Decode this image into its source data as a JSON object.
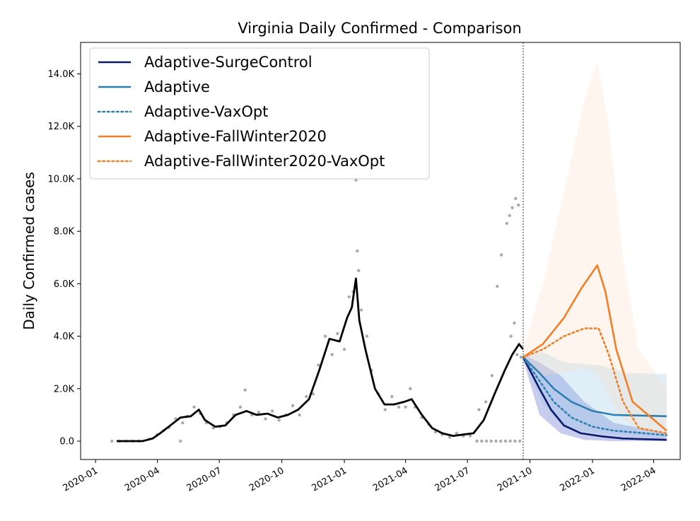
{
  "chart_data": {
    "type": "line",
    "title": "Virginia Daily Confirmed - Comparison",
    "xlabel": "",
    "ylabel": "Daily Confirmed cases",
    "x_ticks": [
      "2020-01",
      "2020-04",
      "2020-07",
      "2020-10",
      "2021-01",
      "2021-04",
      "2021-07",
      "2021-10",
      "2022-01",
      "2022-04"
    ],
    "y_ticks": [
      "0.0",
      "2.0K",
      "4.0K",
      "6.0K",
      "8.0K",
      "10.0K",
      "12.0K",
      "14.0K"
    ],
    "y_tick_values": [
      0,
      2000,
      4000,
      6000,
      8000,
      10000,
      12000,
      14000
    ],
    "xlim": [
      "2019-12-10",
      "2022-05-10"
    ],
    "ylim": [
      -700,
      15200
    ],
    "grid": false,
    "legend_position": "top-left",
    "vline_date": "2021-09-21",
    "observed": {
      "color": "#000000",
      "points": [
        [
          "2020-02-01",
          0
        ],
        [
          "2020-03-10",
          0
        ],
        [
          "2020-03-25",
          100
        ],
        [
          "2020-04-05",
          300
        ],
        [
          "2020-04-20",
          600
        ],
        [
          "2020-05-05",
          900
        ],
        [
          "2020-05-20",
          950
        ],
        [
          "2020-06-01",
          1200
        ],
        [
          "2020-06-10",
          800
        ],
        [
          "2020-06-25",
          550
        ],
        [
          "2020-07-10",
          600
        ],
        [
          "2020-07-25",
          1000
        ],
        [
          "2020-08-10",
          1150
        ],
        [
          "2020-08-25",
          1000
        ],
        [
          "2020-09-10",
          1050
        ],
        [
          "2020-09-25",
          900
        ],
        [
          "2020-10-10",
          1000
        ],
        [
          "2020-10-25",
          1200
        ],
        [
          "2020-11-10",
          1600
        ],
        [
          "2020-11-25",
          2700
        ],
        [
          "2020-12-10",
          3900
        ],
        [
          "2020-12-25",
          3800
        ],
        [
          "2021-01-05",
          4700
        ],
        [
          "2021-01-12",
          5100
        ],
        [
          "2021-01-18",
          6200
        ],
        [
          "2021-01-23",
          4600
        ],
        [
          "2021-02-01",
          3500
        ],
        [
          "2021-02-15",
          2000
        ],
        [
          "2021-03-01",
          1400
        ],
        [
          "2021-03-15",
          1400
        ],
        [
          "2021-03-30",
          1500
        ],
        [
          "2021-04-10",
          1600
        ],
        [
          "2021-04-25",
          1000
        ],
        [
          "2021-05-10",
          500
        ],
        [
          "2021-05-25",
          300
        ],
        [
          "2021-06-10",
          200
        ],
        [
          "2021-06-25",
          250
        ],
        [
          "2021-07-10",
          300
        ],
        [
          "2021-07-25",
          800
        ],
        [
          "2021-08-10",
          1800
        ],
        [
          "2021-08-25",
          2700
        ],
        [
          "2021-09-05",
          3300
        ],
        [
          "2021-09-15",
          3700
        ],
        [
          "2021-09-21",
          3500
        ]
      ]
    },
    "scatter": {
      "color": "#aaaaaa",
      "points": [
        [
          "2020-01-25",
          0
        ],
        [
          "2020-02-05",
          0
        ],
        [
          "2020-02-15",
          0
        ],
        [
          "2020-02-25",
          0
        ],
        [
          "2020-03-05",
          0
        ],
        [
          "2020-03-20",
          80
        ],
        [
          "2020-04-01",
          250
        ],
        [
          "2020-04-10",
          400
        ],
        [
          "2020-04-18",
          520
        ],
        [
          "2020-04-28",
          850
        ],
        [
          "2020-05-08",
          700
        ],
        [
          "2020-05-05",
          0
        ],
        [
          "2020-05-15",
          950
        ],
        [
          "2020-05-25",
          1300
        ],
        [
          "2020-06-03",
          1050
        ],
        [
          "2020-06-12",
          700
        ],
        [
          "2020-06-22",
          500
        ],
        [
          "2020-07-02",
          550
        ],
        [
          "2020-07-12",
          700
        ],
        [
          "2020-07-22",
          1000
        ],
        [
          "2020-08-01",
          1300
        ],
        [
          "2020-08-08",
          1950
        ],
        [
          "2020-08-18",
          1000
        ],
        [
          "2020-08-28",
          1100
        ],
        [
          "2020-09-07",
          850
        ],
        [
          "2020-09-17",
          1150
        ],
        [
          "2020-09-27",
          800
        ],
        [
          "2020-10-07",
          1000
        ],
        [
          "2020-10-17",
          1350
        ],
        [
          "2020-10-27",
          1000
        ],
        [
          "2020-11-06",
          1700
        ],
        [
          "2020-11-16",
          1800
        ],
        [
          "2020-11-24",
          2900
        ],
        [
          "2020-12-04",
          4000
        ],
        [
          "2020-12-14",
          3300
        ],
        [
          "2020-12-22",
          4100
        ],
        [
          "2021-01-01",
          3500
        ],
        [
          "2021-01-08",
          5500
        ],
        [
          "2021-01-14",
          5700
        ],
        [
          "2021-01-18",
          9950
        ],
        [
          "2021-01-20",
          7250
        ],
        [
          "2021-01-22",
          6500
        ],
        [
          "2021-01-26",
          5000
        ],
        [
          "2021-02-03",
          4000
        ],
        [
          "2021-02-10",
          2700
        ],
        [
          "2021-02-20",
          1800
        ],
        [
          "2021-03-02",
          1200
        ],
        [
          "2021-03-12",
          1700
        ],
        [
          "2021-03-22",
          1300
        ],
        [
          "2021-04-01",
          1300
        ],
        [
          "2021-04-08",
          2000
        ],
        [
          "2021-04-15",
          1300
        ],
        [
          "2021-04-25",
          900
        ],
        [
          "2021-05-05",
          650
        ],
        [
          "2021-05-15",
          350
        ],
        [
          "2021-05-25",
          250
        ],
        [
          "2021-06-05",
          150
        ],
        [
          "2021-06-15",
          300
        ],
        [
          "2021-06-25",
          200
        ],
        [
          "2021-07-05",
          200
        ],
        [
          "2021-07-15",
          0
        ],
        [
          "2021-07-22",
          0
        ],
        [
          "2021-07-29",
          0
        ],
        [
          "2021-08-05",
          0
        ],
        [
          "2021-08-12",
          0
        ],
        [
          "2021-08-19",
          0
        ],
        [
          "2021-08-26",
          0
        ],
        [
          "2021-09-02",
          0
        ],
        [
          "2021-09-09",
          0
        ],
        [
          "2021-09-16",
          0
        ],
        [
          "2021-07-18",
          1200
        ],
        [
          "2021-07-28",
          1500
        ],
        [
          "2021-08-06",
          2500
        ],
        [
          "2021-08-14",
          5900
        ],
        [
          "2021-08-20",
          7100
        ],
        [
          "2021-08-28",
          8300
        ],
        [
          "2021-09-01",
          8600
        ],
        [
          "2021-09-05",
          8900
        ],
        [
          "2021-09-10",
          9250
        ],
        [
          "2021-09-14",
          9000
        ],
        [
          "2021-09-03",
          4000
        ],
        [
          "2021-09-08",
          4500
        ],
        [
          "2021-09-12",
          3300
        ],
        [
          "2021-09-18",
          3200
        ]
      ]
    },
    "series": [
      {
        "name": "Adaptive-SurgeControl",
        "color": "#0b1a6b",
        "style": "solid",
        "points": [
          [
            "2021-09-21",
            3200
          ],
          [
            "2021-10-15",
            2000
          ],
          [
            "2021-11-01",
            1200
          ],
          [
            "2021-11-20",
            600
          ],
          [
            "2021-12-15",
            300
          ],
          [
            "2022-01-15",
            180
          ],
          [
            "2022-02-15",
            100
          ],
          [
            "2022-04-20",
            50
          ]
        ],
        "band": {
          "color": "#3a4bc9",
          "upper": [
            [
              "2021-09-21",
              3300
            ],
            [
              "2021-10-15",
              3000
            ],
            [
              "2021-11-15",
              2500
            ],
            [
              "2021-12-20",
              1500
            ],
            [
              "2022-02-01",
              700
            ],
            [
              "2022-04-20",
              300
            ]
          ],
          "lower": [
            [
              "2021-09-21",
              3100
            ],
            [
              "2021-10-15",
              1000
            ],
            [
              "2021-11-15",
              300
            ],
            [
              "2021-12-20",
              50
            ],
            [
              "2022-02-01",
              0
            ],
            [
              "2022-04-20",
              0
            ]
          ]
        }
      },
      {
        "name": "Adaptive",
        "color": "#2e7fb0",
        "style": "solid",
        "points": [
          [
            "2021-09-21",
            3200
          ],
          [
            "2021-10-15",
            2600
          ],
          [
            "2021-11-05",
            2000
          ],
          [
            "2021-12-01",
            1500
          ],
          [
            "2022-01-01",
            1150
          ],
          [
            "2022-02-01",
            1000
          ],
          [
            "2022-04-20",
            950
          ]
        ],
        "band": {
          "color": "#8fc1e3",
          "upper": [
            [
              "2021-09-21",
              3300
            ],
            [
              "2021-10-20",
              3400
            ],
            [
              "2021-11-20",
              3000
            ],
            [
              "2022-01-10",
              2900
            ],
            [
              "2022-02-20",
              2600
            ],
            [
              "2022-04-20",
              2550
            ]
          ],
          "lower": [
            [
              "2021-09-21",
              3100
            ],
            [
              "2021-10-20",
              1400
            ],
            [
              "2021-11-20",
              500
            ],
            [
              "2022-01-10",
              300
            ],
            [
              "2022-02-20",
              200
            ],
            [
              "2022-04-20",
              150
            ]
          ]
        }
      },
      {
        "name": "Adaptive-VaxOpt",
        "color": "#2e7fb0",
        "style": "dotted",
        "points": [
          [
            "2021-09-21",
            3200
          ],
          [
            "2021-10-15",
            2300
          ],
          [
            "2021-11-05",
            1500
          ],
          [
            "2021-12-01",
            900
          ],
          [
            "2022-01-01",
            550
          ],
          [
            "2022-02-01",
            400
          ],
          [
            "2022-04-20",
            230
          ]
        ]
      },
      {
        "name": "Adaptive-FallWinter2020",
        "color": "#f07f27",
        "style": "solid",
        "points": [
          [
            "2021-09-21",
            3200
          ],
          [
            "2021-10-20",
            3700
          ],
          [
            "2021-11-20",
            4700
          ],
          [
            "2021-12-15",
            5800
          ],
          [
            "2022-01-08",
            6700
          ],
          [
            "2022-01-20",
            5700
          ],
          [
            "2022-02-05",
            3500
          ],
          [
            "2022-03-01",
            1500
          ],
          [
            "2022-04-20",
            400
          ]
        ],
        "band": {
          "color": "#fddac2",
          "upper": [
            [
              "2021-09-21",
              3500
            ],
            [
              "2021-10-20",
              6000
            ],
            [
              "2021-11-20",
              9500
            ],
            [
              "2021-12-20",
              13000
            ],
            [
              "2022-01-08",
              14500
            ],
            [
              "2022-01-25",
              12000
            ],
            [
              "2022-02-15",
              7000
            ],
            [
              "2022-03-10",
              3500
            ],
            [
              "2022-04-20",
              2000
            ]
          ],
          "lower": [
            [
              "2021-09-21",
              3100
            ],
            [
              "2021-10-20",
              2500
            ],
            [
              "2021-11-20",
              2600
            ],
            [
              "2021-12-20",
              2800
            ],
            [
              "2022-01-10",
              2500
            ],
            [
              "2022-02-10",
              1000
            ],
            [
              "2022-03-10",
              400
            ],
            [
              "2022-04-20",
              200
            ]
          ]
        }
      },
      {
        "name": "Adaptive-FallWinter2020-VaxOpt",
        "color": "#f07f27",
        "style": "dotted",
        "points": [
          [
            "2021-09-21",
            3200
          ],
          [
            "2021-10-20",
            3500
          ],
          [
            "2021-11-20",
            4000
          ],
          [
            "2021-12-20",
            4300
          ],
          [
            "2022-01-10",
            4300
          ],
          [
            "2022-01-25",
            3300
          ],
          [
            "2022-02-15",
            1500
          ],
          [
            "2022-03-10",
            500
          ],
          [
            "2022-04-20",
            300
          ]
        ]
      }
    ]
  }
}
